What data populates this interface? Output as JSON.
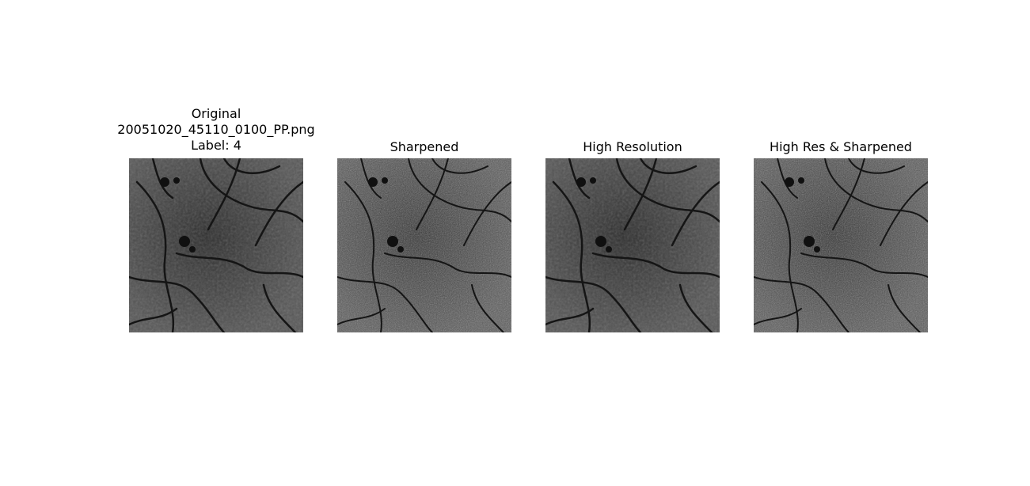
{
  "panels": [
    {
      "title_lines": [
        "Original",
        "20051020_45110_0100_PP.png",
        "Label: 4"
      ],
      "image_icon": "retina-fundus-image"
    },
    {
      "title_lines": [
        "Sharpened"
      ],
      "image_icon": "retina-fundus-image-sharpened"
    },
    {
      "title_lines": [
        "High Resolution"
      ],
      "image_icon": "retina-fundus-image-high-res"
    },
    {
      "title_lines": [
        "High Res & Sharpened"
      ],
      "image_icon": "retina-fundus-image-high-res-sharpened"
    }
  ]
}
